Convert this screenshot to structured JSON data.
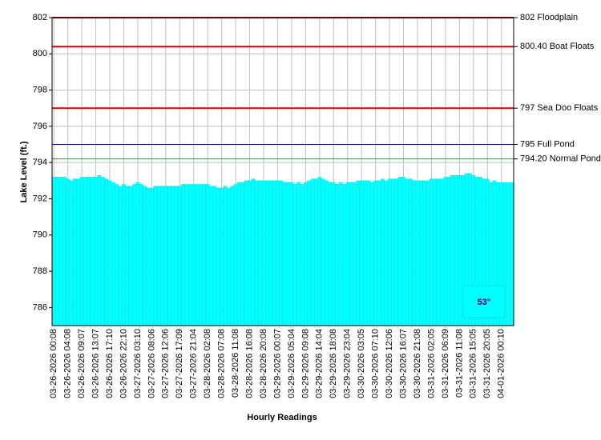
{
  "chart_data": {
    "type": "bar",
    "y_label": "Lake Level (ft.)",
    "x_label": "Hourly Readings",
    "annotation": "53°",
    "color": "#00ffff",
    "grid": true,
    "ylim": [
      785,
      802
    ],
    "yticks": [
      786,
      788,
      790,
      792,
      794,
      796,
      798,
      800,
      802
    ],
    "reference_lines": [
      {
        "value": 802,
        "label": "802 Floodplain",
        "color": "#e00000"
      },
      {
        "value": 800.4,
        "label": "800.40 Boat Floats",
        "color": "#e00000"
      },
      {
        "value": 797,
        "label": "797 Sea Doo Floats",
        "color": "#e00000"
      },
      {
        "value": 795,
        "label": "795 Full Pond",
        "color": "#000080"
      },
      {
        "value": 794.2,
        "label": "794.20 Normal Pond",
        "color": "#3a8a3a"
      }
    ],
    "categories": [
      "03-26-2026 00:08",
      null,
      null,
      null,
      "03-26-2026 04:08",
      null,
      null,
      null,
      "03-26-2026 09:07",
      null,
      null,
      null,
      "03-26-2026 13:07",
      null,
      null,
      null,
      "03-26-2026 17:10",
      null,
      null,
      null,
      "03-26-2026 22:10",
      null,
      null,
      null,
      "03-27-2026 03:10",
      null,
      null,
      null,
      "03-27-2026 08:06",
      null,
      null,
      null,
      "03-27-2026 12:06",
      null,
      null,
      null,
      "03-27-2026 17:09",
      null,
      null,
      null,
      "03-27-2026 21:04",
      null,
      null,
      null,
      "03-28-2026 02:08",
      null,
      null,
      null,
      "03-28-2026 07:08",
      null,
      null,
      null,
      "03-28-2026 11:08",
      null,
      null,
      null,
      "03-28-2026 16:08",
      null,
      null,
      null,
      "03-28-2026 20:08",
      null,
      null,
      null,
      "03-29-2026 00:07",
      null,
      null,
      null,
      "03-29-2026 05:04",
      null,
      null,
      null,
      "03-29-2026 09:08",
      null,
      null,
      null,
      "03-29-2026 14:04",
      null,
      null,
      null,
      "03-29-2026 18:08",
      null,
      null,
      null,
      "03-29-2026 23:04",
      null,
      null,
      null,
      "03-30-2026 03:05",
      null,
      null,
      null,
      "03-30-2026 07:10",
      null,
      null,
      null,
      "03-30-2026 12:06",
      null,
      null,
      null,
      "03-30-2026 16:07",
      null,
      null,
      null,
      "03-30-2026 21:08",
      null,
      null,
      null,
      "03-31-2026 02:05",
      null,
      null,
      null,
      "03-31-2026 06:09",
      null,
      null,
      null,
      "03-31-2026 11:08",
      null,
      null,
      null,
      "03-31-2026 15:05",
      null,
      null,
      null,
      "03-31-2026 20:05",
      null,
      null,
      null,
      "04-01-2026 00:10",
      null,
      null,
      null
    ],
    "values": [
      793.2,
      793.2,
      793.2,
      793.2,
      793.1,
      793.0,
      793.1,
      793.1,
      793.2,
      793.2,
      793.2,
      793.2,
      793.2,
      793.3,
      793.2,
      793.1,
      793.0,
      792.9,
      792.8,
      792.7,
      792.8,
      792.7,
      792.7,
      792.8,
      792.9,
      792.8,
      792.7,
      792.6,
      792.6,
      792.7,
      792.7,
      792.7,
      792.7,
      792.7,
      792.7,
      792.7,
      792.7,
      792.8,
      792.8,
      792.8,
      792.8,
      792.8,
      792.8,
      792.8,
      792.8,
      792.7,
      792.7,
      792.6,
      792.6,
      792.7,
      792.6,
      792.7,
      792.8,
      792.9,
      792.9,
      793.0,
      793.0,
      793.1,
      793.0,
      793.0,
      793.0,
      793.0,
      793.0,
      793.0,
      793.0,
      793.0,
      792.9,
      792.9,
      792.9,
      792.8,
      792.9,
      792.8,
      792.9,
      793.0,
      793.1,
      793.1,
      793.2,
      793.1,
      793.0,
      792.9,
      792.9,
      792.8,
      792.9,
      792.8,
      792.9,
      792.9,
      792.9,
      793.0,
      793.0,
      793.0,
      793.0,
      792.9,
      793.0,
      793.0,
      793.1,
      793.0,
      793.1,
      793.1,
      793.1,
      793.2,
      793.2,
      793.1,
      793.1,
      793.0,
      793.0,
      793.0,
      793.0,
      793.0,
      793.1,
      793.1,
      793.1,
      793.1,
      793.2,
      793.2,
      793.3,
      793.3,
      793.3,
      793.3,
      793.4,
      793.4,
      793.3,
      793.2,
      793.2,
      793.1,
      793.1,
      792.9,
      793.0,
      792.9,
      792.9,
      792.9,
      792.9,
      792.9
    ]
  }
}
